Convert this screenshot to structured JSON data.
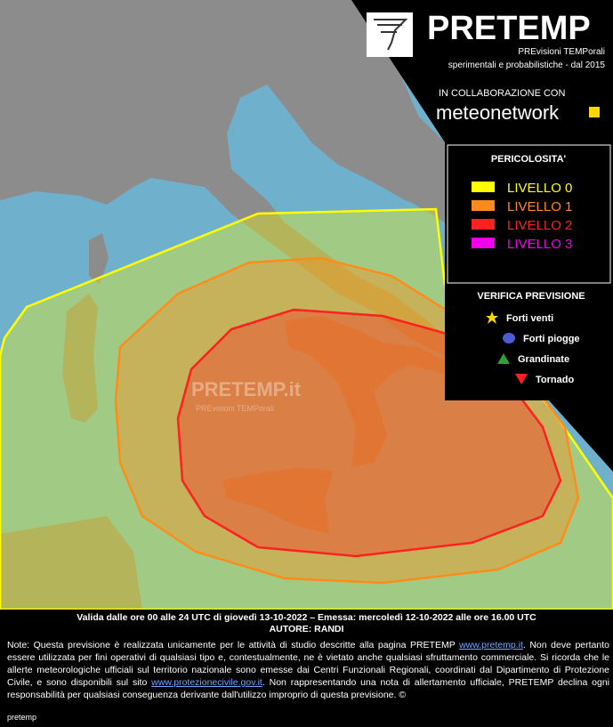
{
  "header": {
    "title": "PRETEMP",
    "subtitle": "PREvisioni TEMPorali",
    "tagline": "sperimentali e probabilistiche - dal 2015",
    "collaboration": "IN COLLABORAZIONE CON",
    "partner": "meteonetwork"
  },
  "legend": {
    "title": "PERICOLOSITA'",
    "levels": [
      {
        "label": "LIVELLO 0",
        "color": "#ffff00"
      },
      {
        "label": "LIVELLO 1",
        "color": "#ff8c1a"
      },
      {
        "label": "LIVELLO 2",
        "color": "#ff2020"
      },
      {
        "label": "LIVELLO 3",
        "color": "#ee00ee"
      }
    ]
  },
  "verification": {
    "title": "VERIFICA PREVISIONE",
    "items": [
      {
        "label": "Forti venti",
        "color": "#ffd700"
      },
      {
        "label": "Forti piogge",
        "color": "#4a5cd6"
      },
      {
        "label": "Grandinate",
        "color": "#2e9e3a"
      },
      {
        "label": "Tornado",
        "color": "#ff2020"
      }
    ]
  },
  "watermark": {
    "title": "PRETEMP.it",
    "subtitle": "PREvisioni TEMPorali"
  },
  "footer": {
    "validity": "Valida dalle ore 00 alle 24 UTC di giovedì 13-10-2022 – Emessa: mercoledì 12-10-2022 alle ore 16.00 UTC",
    "author": "AUTORE: RANDI",
    "note": [
      "Note: Questa previsione è realizzata unicamente per le attività di studio descritte alla pagina PRETEMP ",
      "www.pretemp.it",
      ". Non deve pertanto essere utilizzata per fini operativi di qualsiasi tipo e, contestualmente, ne è vietato anche qualsiasi sfruttamento commerciale. Si ricorda che le allerte meteorologiche ufficiali sul territorio nazionale sono emesse dai Centri Funzionali Regionali, coordinati dal Dipartimento di Protezione Civile, e sono disponibili sul sito ",
      "www.protezionecivile.gov.it",
      ". Non rappresentando una nota di allertamento ufficiale, PRETEMP declina ogni responsabilità per qualsiasi conseguenza derivante dall'utilizzo improprio di questa previsione. ©"
    ],
    "credit": "pretemp"
  }
}
